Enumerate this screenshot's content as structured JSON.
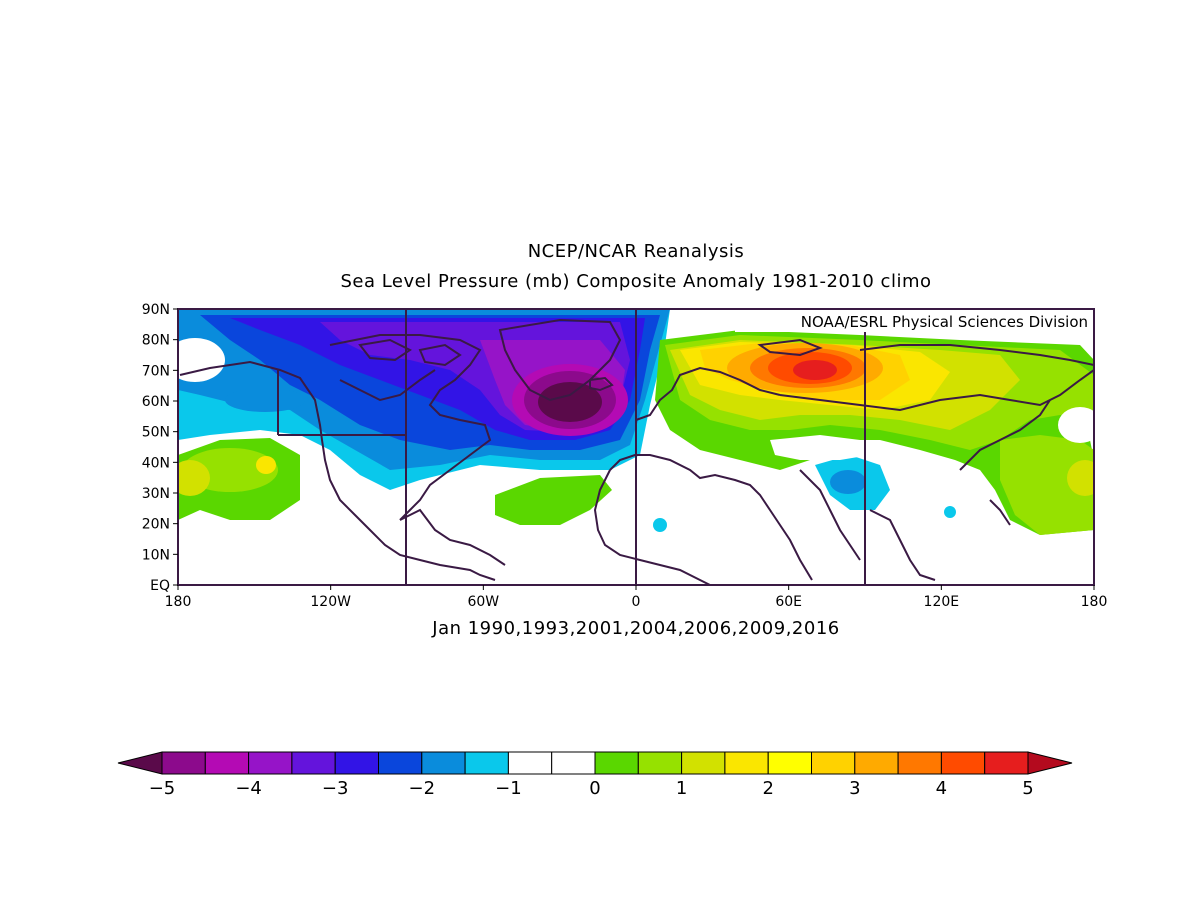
{
  "title_line1": "NCEP/NCAR Reanalysis",
  "title_line2": "Sea Level Pressure (mb) Composite Anomaly 1981-2010 climo",
  "subtitle": "Jan 1990,1993,2001,2004,2006,2009,2016",
  "credit": "NOAA/ESRL Physical Sciences Division",
  "map": {
    "lon_range": [
      -180,
      180
    ],
    "lat_range": [
      0,
      90
    ],
    "lat_ticks": [
      "90N",
      "80N",
      "70N",
      "60N",
      "50N",
      "40N",
      "30N",
      "20N",
      "10N",
      "EQ"
    ],
    "lon_ticks": [
      "180",
      "120W",
      "60W",
      "0",
      "60E",
      "120E",
      "180"
    ]
  },
  "colorbar": {
    "labels": [
      "-5",
      "-4",
      "-3",
      "-2",
      "-1",
      "0",
      "1",
      "2",
      "3",
      "4",
      "5"
    ],
    "colors": [
      "#5a0a4a",
      "#8c0a8c",
      "#b40ab4",
      "#9614c8",
      "#6414dc",
      "#3214e6",
      "#0a46dc",
      "#0a8cdc",
      "#0ac8eb",
      "#ffffff",
      "#ffffff",
      "#5ad700",
      "#96e100",
      "#d2e100",
      "#fae600",
      "#ffff00",
      "#ffd200",
      "#ffaa00",
      "#ff7800",
      "#ff4b00",
      "#e61e1e",
      "#b40a1e"
    ]
  },
  "chart_data": {
    "type": "heatmap",
    "title": "NCEP/NCAR Reanalysis",
    "subtitle": "Sea Level Pressure (mb) Composite Anomaly 1981-2010 climo",
    "xlabel": "Jan 1990,1993,2001,2004,2006,2009,2016",
    "xlim": [
      -180,
      180
    ],
    "ylim": [
      0,
      90
    ],
    "value_range": [
      -5,
      5
    ],
    "features": [
      {
        "lon": -25,
        "lat": 60,
        "value": -5
      },
      {
        "lon": 60,
        "lat": 68,
        "value": 4.5
      },
      {
        "lon": -175,
        "lat": 35,
        "value": 1.5
      },
      {
        "lon": 75,
        "lat": 35,
        "value": -1.5
      }
    ]
  }
}
